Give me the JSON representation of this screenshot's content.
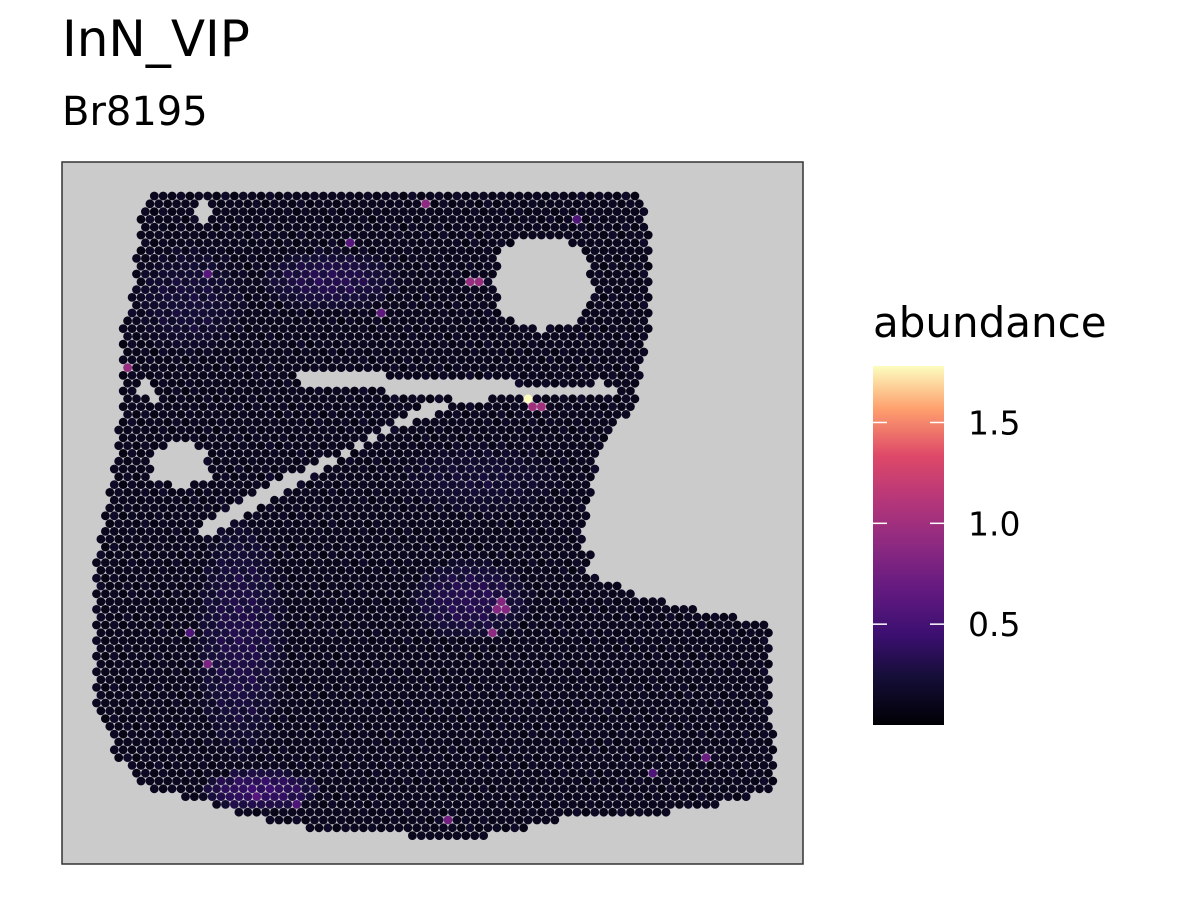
{
  "chart_data": {
    "type": "scatter",
    "title": "InN_VIP",
    "subtitle": "Br8195",
    "xlabel": "",
    "ylabel": "",
    "grid": false,
    "legend": {
      "title": "abundance",
      "position": "right",
      "ticks": [
        "0.5",
        "1.0",
        "1.5"
      ],
      "tick_values": [
        0.5,
        1.0,
        1.5
      ],
      "range": [
        0.0,
        1.78
      ],
      "colormap": "magma"
    },
    "colors": {
      "panel_background": "#cbcbcb",
      "panel_border": "#333333",
      "low": "#000004",
      "high": "#fcfdbf"
    },
    "spots": {
      "baseline_abundance": 0.12,
      "highlights": [
        {
          "x": 0.64,
          "y": 0.33,
          "value": 1.78
        },
        {
          "x": 0.65,
          "y": 0.34,
          "value": 1.0
        },
        {
          "x": 0.06,
          "y": 0.28,
          "value": 0.95
        },
        {
          "x": 0.49,
          "y": 0.02,
          "value": 0.9
        },
        {
          "x": 0.56,
          "y": 0.14,
          "value": 0.95
        },
        {
          "x": 0.59,
          "y": 0.68,
          "value": 0.9
        },
        {
          "x": 0.6,
          "y": 0.64,
          "value": 0.85
        },
        {
          "x": 0.17,
          "y": 0.73,
          "value": 0.8
        },
        {
          "x": 0.52,
          "y": 0.97,
          "value": 0.75
        },
        {
          "x": 0.9,
          "y": 0.87,
          "value": 0.7
        },
        {
          "x": 0.38,
          "y": 0.08,
          "value": 0.6
        },
        {
          "x": 0.43,
          "y": 0.19,
          "value": 0.65
        },
        {
          "x": 0.71,
          "y": 0.05,
          "value": 0.55
        },
        {
          "x": 0.17,
          "y": 0.13,
          "value": 0.6
        },
        {
          "x": 0.15,
          "y": 0.68,
          "value": 0.55
        },
        {
          "x": 0.24,
          "y": 0.93,
          "value": 0.6
        },
        {
          "x": 0.3,
          "y": 0.95,
          "value": 0.55
        },
        {
          "x": 0.82,
          "y": 0.9,
          "value": 0.55
        }
      ]
    }
  }
}
